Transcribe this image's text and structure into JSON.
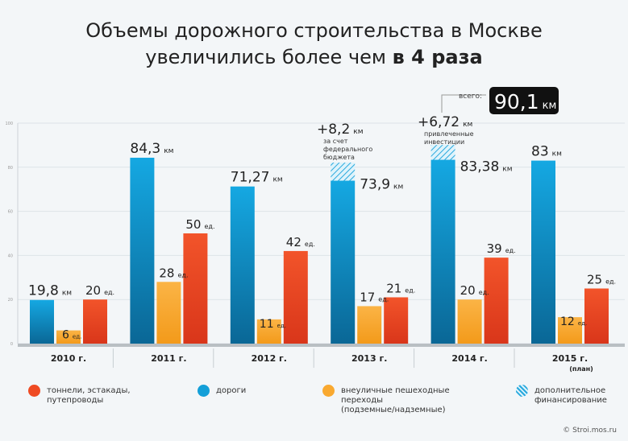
{
  "title": {
    "line1": "Объемы дорожного строительства в Москве",
    "line2_prefix": "увеличились более чем ",
    "line2_bold": "в 4 раза"
  },
  "chart_data": {
    "type": "bar",
    "title": "Объемы дорожного строительства в Москве увеличились более чем в 4 раза",
    "categories": [
      "2010 г.",
      "2011 г.",
      "2012 г.",
      "2013 г.",
      "2014 г.",
      "2015 г."
    ],
    "category_notes": [
      "",
      "",
      "",
      "",
      "",
      "(план)"
    ],
    "ylim": [
      0,
      100
    ],
    "yticks": [
      0,
      20,
      40,
      60,
      80,
      100
    ],
    "grid": true,
    "series": [
      {
        "name": "дороги",
        "unit": "км",
        "color": "#139fd8",
        "values": [
          19.8,
          84.3,
          71.27,
          73.9,
          83.38,
          83
        ],
        "labels": [
          "19,8",
          "84,3",
          "71,27",
          "73,9",
          "83,38",
          "83"
        ]
      },
      {
        "name": "дополнительное финансирование",
        "unit": "км",
        "color": "#8fd3f0",
        "values": [
          0,
          0,
          0,
          8.2,
          6.72,
          0
        ]
      },
      {
        "name": "внеуличные пешеходные переходы (подземные/надземные)",
        "unit": "ед.",
        "color": "#f9a930",
        "values": [
          6,
          28,
          11,
          17,
          20,
          12
        ],
        "labels": [
          "6",
          "28",
          "11",
          "17",
          "20",
          "12"
        ]
      },
      {
        "name": "тоннели, эстакады, путепроводы",
        "unit": "ед.",
        "color": "#ef4b23",
        "values": [
          20,
          50,
          42,
          21,
          39,
          25
        ],
        "labels": [
          "20",
          "50",
          "42",
          "21",
          "39",
          "25"
        ]
      }
    ],
    "annotations": {
      "a2013": {
        "value": "+8,2",
        "unit": "км",
        "text": [
          "за счет",
          "федерального",
          "бюджета"
        ]
      },
      "a2014": {
        "value": "+6,72",
        "unit": "км",
        "text": [
          "привлеченные",
          "инвестиции"
        ]
      },
      "total": {
        "label": "всего:",
        "value": "90,1",
        "unit": "км"
      }
    }
  },
  "legend": [
    {
      "label": [
        "тоннели, эстакады,",
        "путепроводы"
      ],
      "color": "#ef4b23"
    },
    {
      "label": [
        "дороги"
      ],
      "color": "#139fd8"
    },
    {
      "label": [
        "внеуличные пешеходные",
        "переходы",
        "(подземные/надземные)"
      ],
      "color": "#f9a930"
    },
    {
      "label": [
        "дополнительное",
        "финансирование"
      ],
      "color": "#8fd3f0"
    }
  ],
  "credit": "© Stroi.mos.ru"
}
